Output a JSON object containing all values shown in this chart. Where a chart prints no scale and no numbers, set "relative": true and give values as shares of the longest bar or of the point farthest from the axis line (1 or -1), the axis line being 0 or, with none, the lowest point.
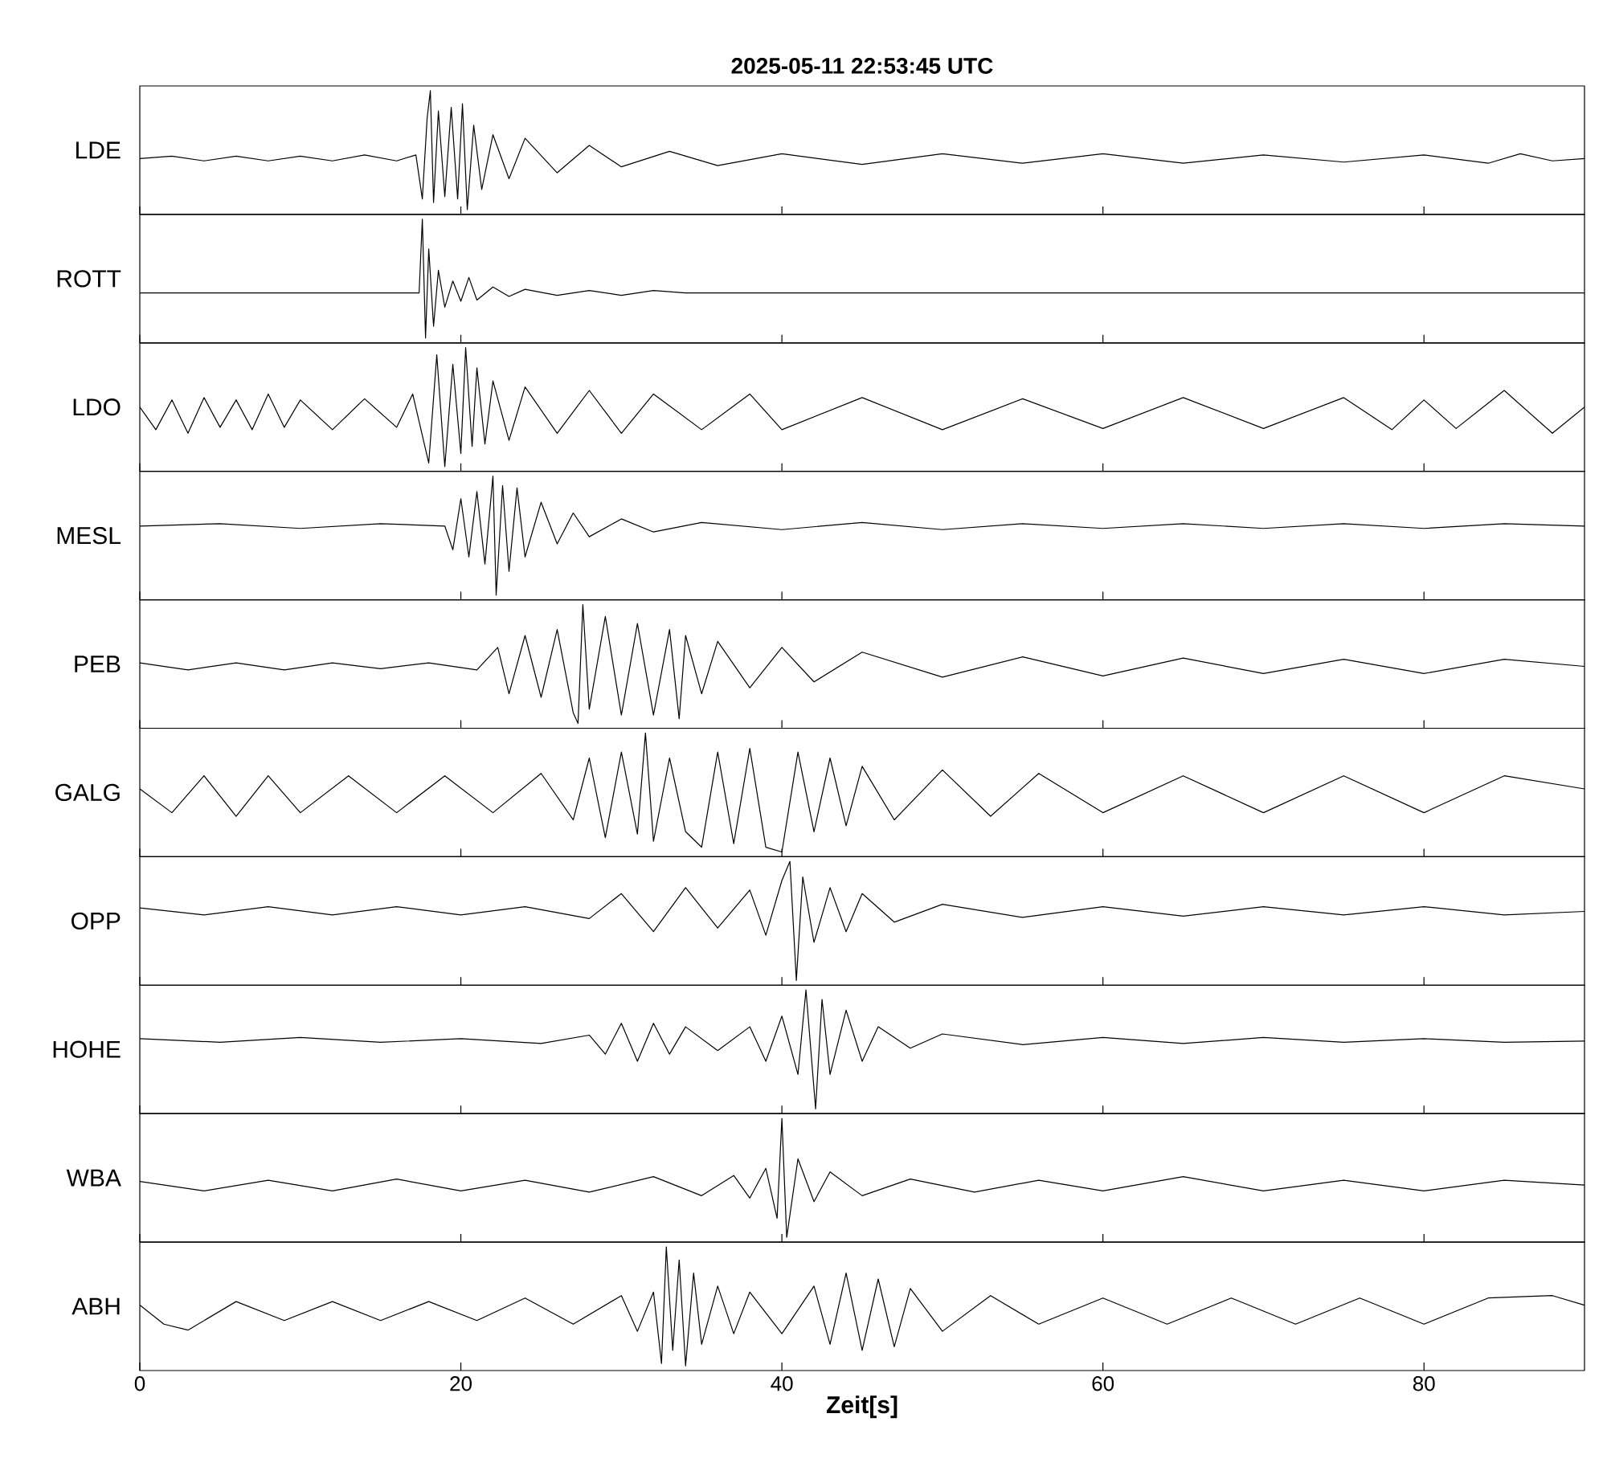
{
  "chart_data": [
    {
      "type": "line",
      "title": "**2025-05-11  22:53:45 UTC**",
      "ylabel": "LDE",
      "color": "#000000",
      "relative": true,
      "xlim": [
        0,
        90
      ],
      "xticks": [
        0,
        20,
        40,
        60,
        80
      ],
      "tick_labels": false,
      "x": [
        0,
        2,
        4,
        6,
        8,
        10,
        12,
        14,
        16,
        17.2,
        17.6,
        17.9,
        18.1,
        18.3,
        18.6,
        19,
        19.4,
        19.8,
        20.1,
        20.4,
        20.8,
        21.3,
        22,
        23,
        24,
        26,
        28,
        30,
        33,
        36,
        40,
        45,
        50,
        55,
        60,
        65,
        70,
        75,
        80,
        84,
        86,
        88,
        90
      ],
      "values": [
        0.43,
        0.45,
        0.41,
        0.45,
        0.41,
        0.45,
        0.41,
        0.46,
        0.41,
        0.46,
        0.09,
        0.77,
        1,
        0.06,
        0.83,
        0.11,
        0.86,
        0.09,
        0.89,
        0,
        0.71,
        0.17,
        0.63,
        0.26,
        0.6,
        0.31,
        0.54,
        0.36,
        0.49,
        0.37,
        0.47,
        0.38,
        0.47,
        0.39,
        0.47,
        0.39,
        0.46,
        0.4,
        0.46,
        0.39,
        0.47,
        0.41,
        0.43
      ]
    },
    {
      "type": "line",
      "ylabel": "ROTT",
      "color": "#000000",
      "relative": true,
      "xlim": [
        0,
        90
      ],
      "xticks": [
        0,
        20,
        40,
        60,
        80
      ],
      "tick_labels": false,
      "x": [
        0,
        10,
        17.4,
        17.6,
        17.8,
        18.0,
        18.3,
        18.6,
        19,
        19.5,
        20,
        20.5,
        21,
        22,
        23,
        24,
        26,
        28,
        30,
        32,
        34,
        40,
        60,
        90
      ],
      "values": [
        0.38,
        0.38,
        0.38,
        1,
        0,
        0.75,
        0.1,
        0.57,
        0.26,
        0.48,
        0.31,
        0.51,
        0.32,
        0.43,
        0.35,
        0.41,
        0.36,
        0.4,
        0.36,
        0.4,
        0.38,
        0.38,
        0.38,
        0.38
      ]
    },
    {
      "type": "line",
      "ylabel": "LDO",
      "color": "#000000",
      "relative": true,
      "xlim": [
        0,
        90
      ],
      "xticks": [
        0,
        20,
        40,
        60,
        80
      ],
      "tick_labels": false,
      "x": [
        0,
        1,
        2,
        3,
        4,
        5,
        6,
        7,
        8,
        9,
        10,
        12,
        14,
        16,
        17,
        18,
        18.5,
        19,
        19.5,
        20,
        20.3,
        20.7,
        21,
        21.5,
        22,
        23,
        24,
        26,
        28,
        30,
        32,
        35,
        38,
        40,
        45,
        50,
        55,
        60,
        65,
        70,
        75,
        78,
        80,
        82,
        85,
        88,
        90
      ],
      "values": [
        0.5,
        0.31,
        0.56,
        0.28,
        0.58,
        0.33,
        0.56,
        0.31,
        0.61,
        0.33,
        0.56,
        0.31,
        0.57,
        0.33,
        0.61,
        0.03,
        0.94,
        0,
        0.86,
        0.11,
        1,
        0.17,
        0.83,
        0.19,
        0.72,
        0.22,
        0.67,
        0.28,
        0.64,
        0.28,
        0.61,
        0.31,
        0.61,
        0.31,
        0.58,
        0.31,
        0.57,
        0.32,
        0.58,
        0.32,
        0.58,
        0.31,
        0.56,
        0.32,
        0.64,
        0.28,
        0.5
      ]
    },
    {
      "type": "line",
      "ylabel": "MESL",
      "color": "#000000",
      "relative": true,
      "xlim": [
        0,
        90
      ],
      "xticks": [
        0,
        20,
        40,
        60,
        80
      ],
      "tick_labels": false,
      "x": [
        0,
        5,
        10,
        15,
        19,
        19.5,
        20,
        20.5,
        21,
        21.5,
        22,
        22.2,
        22.6,
        23,
        23.5,
        24,
        25,
        26,
        27,
        28,
        30,
        32,
        35,
        40,
        45,
        50,
        55,
        60,
        65,
        70,
        75,
        80,
        85,
        90
      ],
      "values": [
        0.58,
        0.6,
        0.56,
        0.6,
        0.58,
        0.38,
        0.81,
        0.32,
        0.87,
        0.26,
        1,
        0,
        0.92,
        0.2,
        0.9,
        0.32,
        0.78,
        0.43,
        0.69,
        0.49,
        0.64,
        0.53,
        0.61,
        0.55,
        0.61,
        0.55,
        0.6,
        0.56,
        0.6,
        0.56,
        0.6,
        0.56,
        0.6,
        0.58
      ]
    },
    {
      "type": "line",
      "ylabel": "PEB",
      "color": "#000000",
      "relative": true,
      "xlim": [
        0,
        90
      ],
      "xticks": [
        0,
        20,
        40,
        60,
        80
      ],
      "tick_labels": false,
      "x": [
        0,
        3,
        6,
        9,
        12,
        15,
        18,
        21,
        22.3,
        23,
        24,
        25,
        26,
        27,
        27.3,
        27.6,
        28,
        29,
        30,
        31,
        32,
        33,
        33.6,
        34,
        35,
        36,
        38,
        40,
        42,
        45,
        50,
        55,
        60,
        65,
        70,
        75,
        80,
        85,
        90
      ],
      "values": [
        0.51,
        0.45,
        0.51,
        0.45,
        0.51,
        0.46,
        0.51,
        0.45,
        0.64,
        0.25,
        0.74,
        0.22,
        0.79,
        0.09,
        0,
        1,
        0.12,
        0.9,
        0.07,
        0.84,
        0.07,
        0.79,
        0.04,
        0.74,
        0.25,
        0.69,
        0.3,
        0.64,
        0.35,
        0.6,
        0.39,
        0.56,
        0.4,
        0.55,
        0.42,
        0.54,
        0.42,
        0.54,
        0.48
      ]
    },
    {
      "type": "line",
      "ylabel": "GALG",
      "color": "#000000",
      "relative": true,
      "xlim": [
        0,
        90
      ],
      "xticks": [
        0,
        20,
        40,
        60,
        80
      ],
      "tick_labels": false,
      "x": [
        0,
        2,
        4,
        6,
        8,
        10,
        13,
        16,
        19,
        22,
        25,
        27,
        28,
        29,
        30,
        31,
        31.5,
        32,
        33,
        34,
        35,
        36,
        37,
        38,
        39,
        40,
        41,
        42,
        43,
        44,
        45,
        47,
        50,
        53,
        56,
        60,
        65,
        70,
        75,
        80,
        85,
        90
      ],
      "values": [
        0.53,
        0.33,
        0.64,
        0.3,
        0.64,
        0.33,
        0.64,
        0.33,
        0.64,
        0.33,
        0.66,
        0.27,
        0.79,
        0.12,
        0.84,
        0.15,
        1,
        0.09,
        0.79,
        0.17,
        0.04,
        0.84,
        0.07,
        0.87,
        0.04,
        0,
        0.84,
        0.17,
        0.79,
        0.22,
        0.72,
        0.27,
        0.69,
        0.3,
        0.66,
        0.33,
        0.64,
        0.33,
        0.64,
        0.33,
        0.64,
        0.53
      ]
    },
    {
      "type": "line",
      "ylabel": "OPP",
      "color": "#000000",
      "relative": true,
      "xlim": [
        0,
        90
      ],
      "xticks": [
        0,
        20,
        40,
        60,
        80
      ],
      "tick_labels": false,
      "x": [
        0,
        4,
        8,
        12,
        16,
        20,
        24,
        28,
        30,
        32,
        34,
        36,
        38,
        39,
        40,
        40.5,
        40.9,
        41.3,
        42,
        43,
        44,
        45,
        47,
        50,
        55,
        60,
        65,
        70,
        75,
        80,
        85,
        90
      ],
      "values": [
        0.61,
        0.55,
        0.62,
        0.55,
        0.62,
        0.55,
        0.62,
        0.52,
        0.73,
        0.41,
        0.78,
        0.44,
        0.76,
        0.38,
        0.84,
        1,
        0,
        0.87,
        0.32,
        0.78,
        0.41,
        0.73,
        0.49,
        0.64,
        0.53,
        0.62,
        0.54,
        0.62,
        0.55,
        0.62,
        0.55,
        0.58
      ]
    },
    {
      "type": "line",
      "ylabel": "HOHE",
      "color": "#000000",
      "relative": true,
      "xlim": [
        0,
        90
      ],
      "xticks": [
        0,
        20,
        40,
        60,
        80
      ],
      "tick_labels": false,
      "x": [
        0,
        5,
        10,
        15,
        20,
        25,
        28,
        29,
        30,
        31,
        32,
        33,
        34,
        36,
        38,
        39,
        40,
        41,
        41.5,
        42.1,
        42.5,
        43,
        44,
        45,
        46,
        48,
        50,
        55,
        60,
        65,
        70,
        75,
        80,
        85,
        90
      ],
      "values": [
        0.59,
        0.56,
        0.6,
        0.56,
        0.59,
        0.55,
        0.62,
        0.46,
        0.72,
        0.4,
        0.72,
        0.46,
        0.69,
        0.49,
        0.69,
        0.4,
        0.78,
        0.29,
        1,
        0,
        0.92,
        0.29,
        0.83,
        0.4,
        0.69,
        0.51,
        0.63,
        0.54,
        0.6,
        0.55,
        0.6,
        0.56,
        0.59,
        0.56,
        0.57
      ]
    },
    {
      "type": "line",
      "ylabel": "WBA",
      "color": "#000000",
      "relative": true,
      "xlim": [
        0,
        90
      ],
      "xticks": [
        0,
        20,
        40,
        60,
        80
      ],
      "tick_labels": false,
      "x": [
        0,
        4,
        8,
        12,
        16,
        20,
        24,
        28,
        32,
        35,
        37,
        38,
        39,
        39.7,
        40,
        40.3,
        41,
        42,
        43,
        45,
        48,
        52,
        56,
        60,
        65,
        70,
        75,
        80,
        85,
        90
      ],
      "values": [
        0.47,
        0.39,
        0.48,
        0.39,
        0.49,
        0.39,
        0.48,
        0.38,
        0.51,
        0.35,
        0.52,
        0.33,
        0.58,
        0.16,
        1,
        0,
        0.66,
        0.3,
        0.55,
        0.35,
        0.49,
        0.38,
        0.48,
        0.39,
        0.51,
        0.39,
        0.48,
        0.39,
        0.48,
        0.44
      ]
    },
    {
      "type": "line",
      "ylabel": "ABH",
      "xlabel": "**Zeit[s]**",
      "color": "#000000",
      "relative": true,
      "xlim": [
        0,
        90
      ],
      "xticks": [
        0,
        20,
        40,
        60,
        80
      ],
      "tick_labels": "x",
      "x": [
        0,
        1.5,
        3,
        6,
        9,
        12,
        15,
        18,
        21,
        24,
        27,
        30,
        31,
        32,
        32.5,
        32.8,
        33.2,
        33.6,
        34,
        34.5,
        35,
        36,
        37,
        38,
        40,
        42,
        43,
        44,
        45,
        46,
        47,
        48,
        50,
        53,
        56,
        60,
        64,
        68,
        72,
        76,
        80,
        84,
        88,
        90
      ],
      "values": [
        0.51,
        0.35,
        0.3,
        0.54,
        0.38,
        0.54,
        0.38,
        0.54,
        0.38,
        0.57,
        0.35,
        0.59,
        0.29,
        0.62,
        0.02,
        1,
        0.13,
        0.89,
        0,
        0.78,
        0.18,
        0.67,
        0.27,
        0.62,
        0.27,
        0.67,
        0.18,
        0.78,
        0.13,
        0.73,
        0.16,
        0.65,
        0.29,
        0.59,
        0.35,
        0.57,
        0.35,
        0.57,
        0.35,
        0.57,
        0.35,
        0.57,
        0.59,
        0.51
      ]
    }
  ]
}
